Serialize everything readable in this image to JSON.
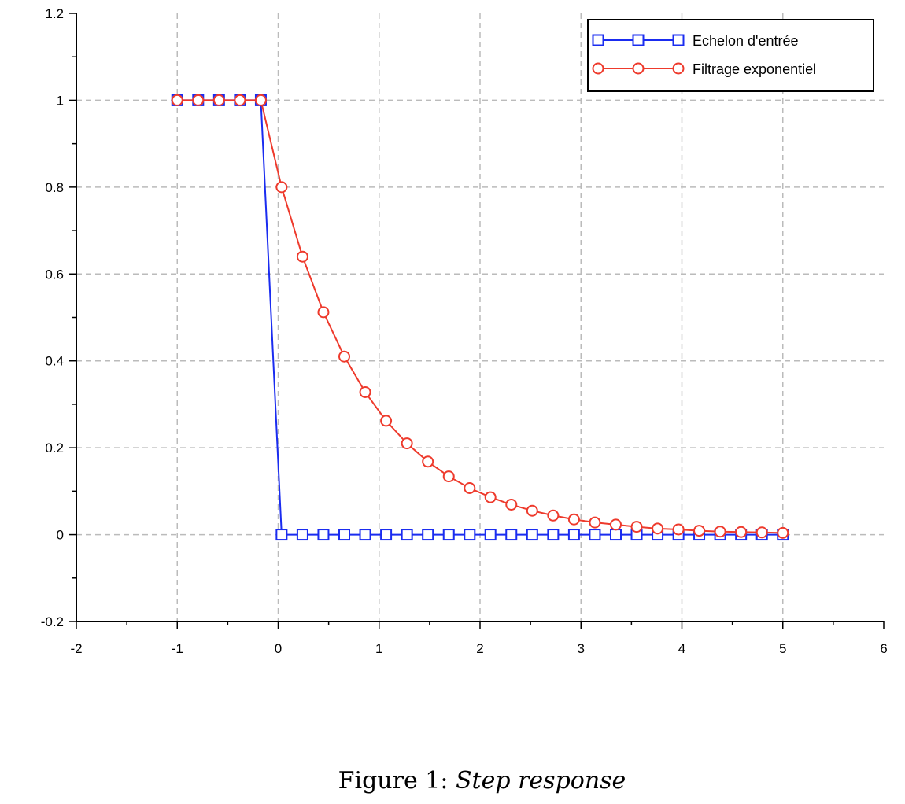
{
  "caption": {
    "prefix": "Figure 1:",
    "title": "Step response"
  },
  "chart_data": {
    "type": "line",
    "xlim": [
      -2,
      6
    ],
    "ylim": [
      -0.2,
      1.2
    ],
    "xticks": [
      -2,
      -1,
      0,
      1,
      2,
      3,
      4,
      5,
      6
    ],
    "yticks": [
      -0.2,
      0,
      0.2,
      0.4,
      0.6,
      0.8,
      1,
      1.2
    ],
    "xtick_labels": [
      "-2",
      "-1",
      "0",
      "1",
      "2",
      "3",
      "4",
      "5",
      "6"
    ],
    "ytick_labels": [
      "-0.2",
      "0",
      "0.2",
      "0.4",
      "0.6",
      "0.8",
      "1",
      "1.2"
    ],
    "grid": true,
    "legend_position": "top-right",
    "x": [
      -1,
      -0.793,
      -0.586,
      -0.379,
      -0.172,
      0.034,
      0.241,
      0.448,
      0.655,
      0.862,
      1.069,
      1.276,
      1.483,
      1.69,
      1.897,
      2.103,
      2.31,
      2.517,
      2.724,
      2.931,
      3.138,
      3.345,
      3.552,
      3.759,
      3.966,
      4.172,
      4.379,
      4.586,
      4.793,
      5
    ],
    "series": [
      {
        "name": "Echelon d'entrée",
        "color": "#1a2cf0",
        "marker": "square",
        "values": [
          1,
          1,
          1,
          1,
          1,
          0,
          0,
          0,
          0,
          0,
          0,
          0,
          0,
          0,
          0,
          0,
          0,
          0,
          0,
          0,
          0,
          0,
          0,
          0,
          0,
          0,
          0,
          0,
          0,
          0
        ]
      },
      {
        "name": "Filtrage exponentiel",
        "color": "#ee3a2c",
        "marker": "circle",
        "values": [
          1,
          1,
          1,
          1,
          1,
          0.8,
          0.64,
          0.512,
          0.41,
          0.328,
          0.262,
          0.21,
          0.168,
          0.134,
          0.107,
          0.086,
          0.069,
          0.055,
          0.044,
          0.035,
          0.028,
          0.023,
          0.018,
          0.014,
          0.012,
          0.009,
          0.007,
          0.006,
          0.005,
          0.004
        ]
      }
    ]
  }
}
